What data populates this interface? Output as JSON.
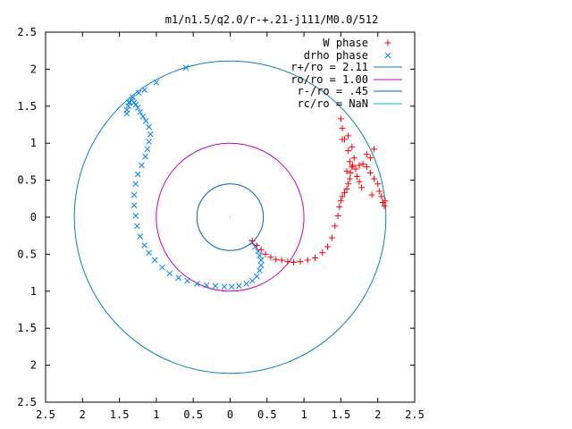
{
  "chart_data": {
    "type": "scatter",
    "title": "m1/n1.5/q2.0/r-+.21-j111/M0.0/512",
    "xlabel": "",
    "ylabel": "",
    "xlim": [
      -2.5,
      2.5
    ],
    "ylim": [
      -2.5,
      2.5
    ],
    "grid": false,
    "legend_position": "top-right",
    "x_tick_labels": [
      "2.5",
      "2",
      "1.5",
      "1",
      "0.5",
      "0",
      "0.5",
      "1",
      "1.5",
      "2",
      "2.5"
    ],
    "y_tick_labels": [
      "2.5",
      "2",
      "1.5",
      "1",
      "0.5",
      "0",
      "0.5",
      "1",
      "1.5",
      "2",
      "2.5"
    ],
    "series": [
      {
        "name": "W phase",
        "marker": "plus",
        "color": "#ff0000",
        "x": [
          0.3,
          0.36,
          0.42,
          0.48,
          0.55,
          0.62,
          0.7,
          0.78,
          0.86,
          0.95,
          1.05,
          1.15,
          1.25,
          1.32,
          1.38,
          1.42,
          1.46,
          1.48,
          1.5,
          1.52,
          1.55,
          1.58,
          1.6,
          1.62,
          1.63,
          1.65,
          1.62,
          1.66,
          1.7,
          1.75,
          1.8,
          1.85,
          1.9,
          1.95,
          2.0,
          2.02,
          2.05,
          2.07,
          2.09,
          2.1,
          1.92,
          1.78,
          1.72,
          1.68,
          1.6,
          1.55,
          1.52,
          1.5,
          1.6,
          1.65,
          1.85,
          1.95,
          1.9,
          1.75,
          1.58,
          1.52
        ],
        "y": [
          -0.32,
          -0.38,
          -0.44,
          -0.5,
          -0.54,
          -0.57,
          -0.58,
          -0.6,
          -0.61,
          -0.6,
          -0.58,
          -0.55,
          -0.48,
          -0.4,
          -0.28,
          -0.12,
          0.02,
          0.14,
          0.22,
          0.28,
          0.33,
          0.38,
          0.45,
          0.52,
          0.6,
          0.68,
          0.75,
          0.7,
          0.65,
          0.7,
          0.72,
          0.68,
          0.6,
          0.52,
          0.45,
          0.35,
          0.28,
          0.2,
          0.15,
          0.22,
          0.3,
          0.4,
          0.55,
          0.8,
          0.9,
          1.05,
          1.2,
          1.33,
          1.1,
          0.95,
          0.85,
          0.92,
          0.8,
          0.48,
          0.62,
          1.05
        ]
      },
      {
        "name": "drho phase",
        "marker": "cross",
        "color": "#0080ff",
        "x": [
          0.3,
          0.34,
          0.38,
          0.4,
          0.42,
          0.42,
          0.4,
          0.36,
          0.3,
          0.22,
          0.12,
          0.02,
          -0.08,
          -0.2,
          -0.32,
          -0.45,
          -0.58,
          -0.7,
          -0.82,
          -0.92,
          -1.02,
          -1.1,
          -1.16,
          -1.22,
          -1.26,
          -1.28,
          -1.3,
          -1.3,
          -1.28,
          -1.25,
          -1.2,
          -1.15,
          -1.12,
          -1.1,
          -1.08,
          -1.1,
          -1.14,
          -1.18,
          -1.22,
          -1.25,
          -1.28,
          -1.3,
          -1.33,
          -1.36,
          -1.38,
          -1.4,
          -1.4,
          -1.37,
          -1.32,
          -1.24,
          -1.16,
          -1.0,
          -0.6
        ],
        "y": [
          -0.34,
          -0.4,
          -0.46,
          -0.52,
          -0.58,
          -0.65,
          -0.72,
          -0.8,
          -0.86,
          -0.9,
          -0.93,
          -0.94,
          -0.94,
          -0.93,
          -0.92,
          -0.9,
          -0.86,
          -0.82,
          -0.76,
          -0.68,
          -0.58,
          -0.48,
          -0.38,
          -0.26,
          -0.12,
          0.02,
          0.16,
          0.3,
          0.45,
          0.58,
          0.7,
          0.82,
          0.92,
          1.02,
          1.12,
          1.22,
          1.3,
          1.36,
          1.42,
          1.48,
          1.52,
          1.55,
          1.58,
          1.55,
          1.5,
          1.45,
          1.4,
          1.55,
          1.62,
          1.68,
          1.72,
          1.82,
          2.02
        ]
      }
    ],
    "circles": [
      {
        "label": "r+/ro = 2.11",
        "radius": 2.11,
        "color": "#0080c0"
      },
      {
        "label": "ro/ro = 1.00",
        "radius": 1.0,
        "color": "#c000c0"
      },
      {
        "label": "r-/ro = .45",
        "radius": 0.45,
        "color": "#0060c0"
      },
      {
        "label": "rc/ro = NaN",
        "radius": null,
        "color": "#00c0d0"
      }
    ]
  }
}
